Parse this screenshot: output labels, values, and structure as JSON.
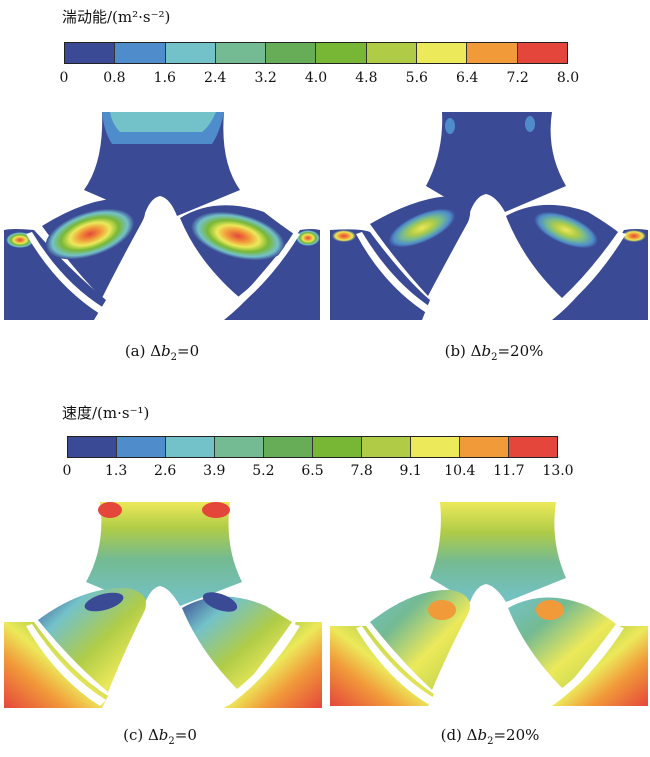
{
  "bars": [
    {
      "title": "湍动能/(m²·s⁻²)",
      "ticks": [
        "0",
        "0.8",
        "1.6",
        "2.4",
        "3.2",
        "4.0",
        "4.8",
        "5.6",
        "6.4",
        "7.2",
        "8.0"
      ],
      "colors": [
        "#3a4a94",
        "#4f8ccb",
        "#74c2c9",
        "#74ba92",
        "#67ad57",
        "#78b735",
        "#b0cc47",
        "#ece95a",
        "#f19a3a",
        "#e5463b"
      ]
    },
    {
      "title": "速度/(m·s⁻¹)",
      "ticks": [
        "0",
        "1.3",
        "2.6",
        "3.9",
        "5.2",
        "6.5",
        "7.8",
        "9.1",
        "10.4",
        "11.7",
        "13.0"
      ],
      "colors": [
        "#3a4a94",
        "#4f8ccb",
        "#74c2c9",
        "#74ba92",
        "#67ad57",
        "#78b735",
        "#b0cc47",
        "#ece95a",
        "#f19a3a",
        "#e5463b"
      ]
    }
  ],
  "captions": [
    {
      "prefix": "(a) Δ",
      "var": "b",
      "sub": "2",
      "suffix": "=0"
    },
    {
      "prefix": "(b) Δ",
      "var": "b",
      "sub": "2",
      "suffix": "=20%"
    },
    {
      "prefix": "(c) Δ",
      "var": "b",
      "sub": "2",
      "suffix": "=0"
    },
    {
      "prefix": "(d) Δ",
      "var": "b",
      "sub": "2",
      "suffix": "=20%"
    }
  ]
}
